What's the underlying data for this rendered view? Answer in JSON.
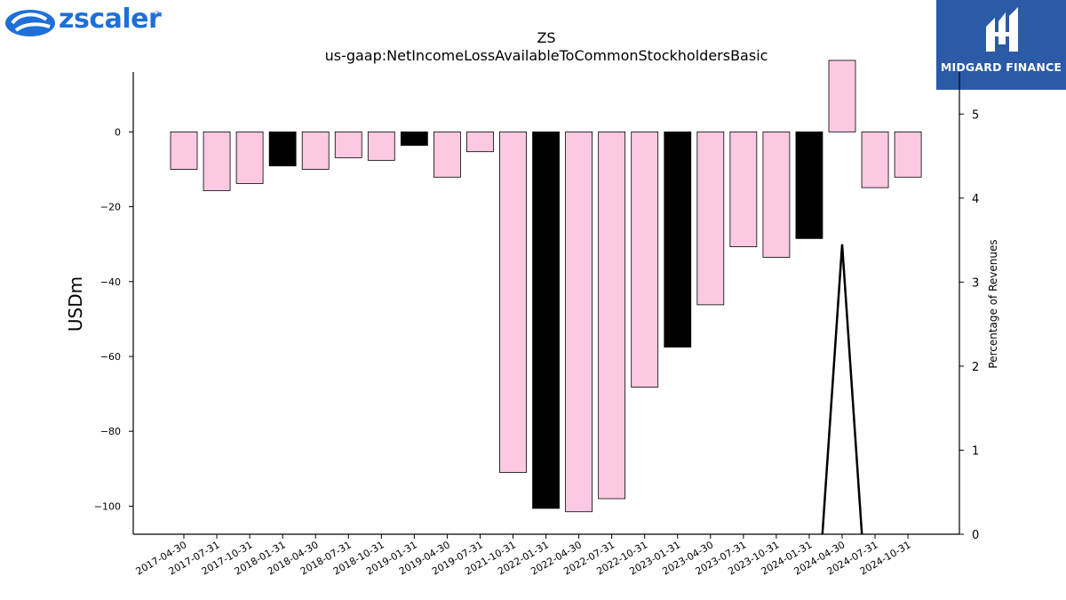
{
  "brand_left": {
    "name": "zscaler",
    "tm": "™",
    "color": "#1e6fd9"
  },
  "brand_right": {
    "name": "MIDGARD FINANCE",
    "bg": "#2b5aa6"
  },
  "chart_data": {
    "type": "bar",
    "title": "ZS",
    "subtitle": "us-gaap:NetIncomeLossAvailableToCommonStockholdersBasic",
    "ylabel": "USDm",
    "y2label": "Percentage of Revenues",
    "ylim": [
      -107.5,
      16
    ],
    "y2lim": [
      0,
      5.5
    ],
    "yticks": [
      0,
      -20,
      -40,
      -60,
      -80,
      -100
    ],
    "y2ticks": [
      0,
      1,
      2,
      3,
      4,
      5
    ],
    "colors": {
      "quarter": "#fcc9e3",
      "annual": "#000000",
      "line": "#000000"
    },
    "categories": [
      "2017-04-30",
      "2017-07-31",
      "2017-10-31",
      "2018-01-31",
      "2018-04-30",
      "2018-07-31",
      "2018-10-31",
      "2019-01-31",
      "2019-04-30",
      "2019-07-31",
      "2021-10-31",
      "2022-01-31",
      "2022-04-30",
      "2022-07-31",
      "2022-10-31",
      "2023-01-31",
      "2023-04-30",
      "2023-07-31",
      "2023-10-31",
      "2024-01-31",
      "2024-04-30",
      "2024-07-31",
      "2024-10-31"
    ],
    "series": [
      {
        "values": [
          -10.0,
          -15.7,
          -13.8,
          -9.1,
          -10.0,
          -6.9,
          -7.6,
          -3.6,
          -12.1,
          -5.3,
          -91.0,
          -100.6,
          -101.5,
          -98.0,
          -68.2,
          -57.5,
          -46.2,
          -30.7,
          -33.5,
          -28.5,
          19.1,
          -14.9,
          -12.1
        ]
      }
    ],
    "annual_flags": [
      0,
      0,
      0,
      1,
      0,
      0,
      0,
      1,
      0,
      0,
      0,
      1,
      0,
      0,
      0,
      1,
      0,
      0,
      0,
      1,
      0,
      0,
      0
    ],
    "line_series": {
      "x_index": [
        19.4,
        20.0,
        20.6
      ],
      "values": [
        0,
        3.45,
        0
      ]
    }
  }
}
